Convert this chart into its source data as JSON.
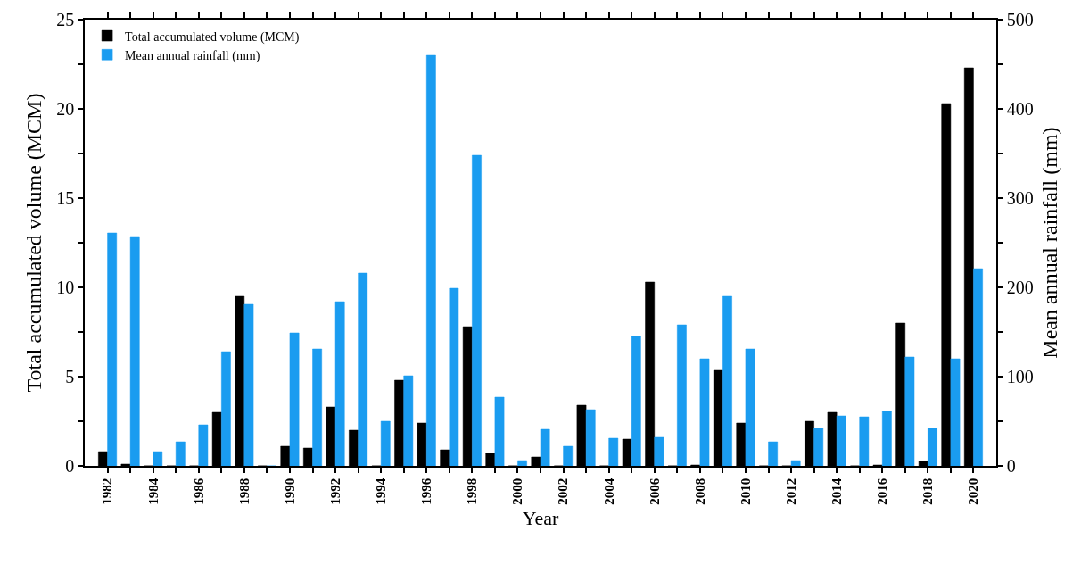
{
  "chart_data": {
    "type": "bar",
    "xlabel": "Year",
    "ylabel": "Total accumulated volume (MCM)",
    "y2label": "Mean annual rainfall (mm)",
    "x": [
      1982,
      1983,
      1984,
      1985,
      1986,
      1987,
      1988,
      1989,
      1990,
      1991,
      1992,
      1993,
      1994,
      1995,
      1996,
      1997,
      1998,
      1999,
      2000,
      2001,
      2002,
      2003,
      2004,
      2005,
      2006,
      2007,
      2008,
      2009,
      2010,
      2011,
      2012,
      2013,
      2014,
      2015,
      2016,
      2017,
      2018,
      2019,
      2020
    ],
    "series": [
      {
        "name": "Total accumulated volume (MCM)",
        "color": "#000000",
        "values": [
          0.8,
          0.1,
          0,
          0,
          0,
          3.0,
          9.5,
          0,
          1.1,
          1.0,
          3.3,
          2.0,
          0,
          4.8,
          2.4,
          0.9,
          7.8,
          0.7,
          0,
          0.5,
          0,
          3.4,
          0,
          1.5,
          10.3,
          0,
          0.05,
          5.4,
          2.4,
          0,
          0,
          2.5,
          3.0,
          0,
          0.05,
          8.0,
          0.25,
          20.3,
          22.3
        ]
      },
      {
        "name": "Mean annual rainfall (mm)",
        "color": "#1a9cf0",
        "axis": "y2",
        "values": [
          261,
          257,
          16,
          27,
          46,
          128,
          181,
          0,
          149,
          131,
          184,
          216,
          50,
          101,
          460,
          199,
          348,
          77,
          6,
          41,
          22,
          63,
          31,
          145,
          32,
          158,
          120,
          190,
          131,
          27,
          6,
          42,
          56,
          55,
          61,
          122,
          42,
          120,
          221
        ]
      }
    ],
    "xlim": [
      1981,
      2021
    ],
    "xticks": [
      1982,
      {
        "value": 1983,
        "label": null
      },
      1984,
      {
        "value": 1985,
        "label": null
      },
      1986,
      {
        "value": 1987,
        "label": null
      },
      1988,
      {
        "value": 1989,
        "label": null
      },
      1990,
      {
        "value": 1991,
        "label": null
      },
      1992,
      {
        "value": 1993,
        "label": null
      },
      1994,
      {
        "value": 1995,
        "label": null
      },
      1996,
      {
        "value": 1997,
        "label": null
      },
      1998,
      {
        "value": 1999,
        "label": null
      },
      2000,
      {
        "value": 2001,
        "label": null
      },
      2002,
      {
        "value": 2003,
        "label": null
      },
      2004,
      {
        "value": 2005,
        "label": null
      },
      2006,
      {
        "value": 2007,
        "label": null
      },
      2008,
      {
        "value": 2009,
        "label": null
      },
      2010,
      {
        "value": 2011,
        "label": null
      },
      2012,
      {
        "value": 2013,
        "label": null
      },
      2014,
      {
        "value": 2015,
        "label": null
      },
      2016,
      {
        "value": 2017,
        "label": null
      },
      2018,
      {
        "value": 2019,
        "label": null
      },
      2020
    ],
    "ylim": [
      0,
      25
    ],
    "yticks": [
      0,
      {
        "value": 2.5,
        "label": null
      },
      5,
      {
        "value": 7.5,
        "label": null
      },
      10,
      {
        "value": 12.5,
        "label": null
      },
      15,
      {
        "value": 17.5,
        "label": null
      },
      20,
      {
        "value": 22.5,
        "label": null
      },
      25
    ],
    "y2lim": [
      0,
      500
    ],
    "y2ticks": [
      0,
      {
        "value": 50,
        "label": null
      },
      100,
      {
        "value": 150,
        "label": null
      },
      200,
      {
        "value": 250,
        "label": null
      },
      300,
      {
        "value": 350,
        "label": null
      },
      400,
      {
        "value": 450,
        "label": null
      },
      500
    ],
    "legend": "top left",
    "grid": false
  }
}
